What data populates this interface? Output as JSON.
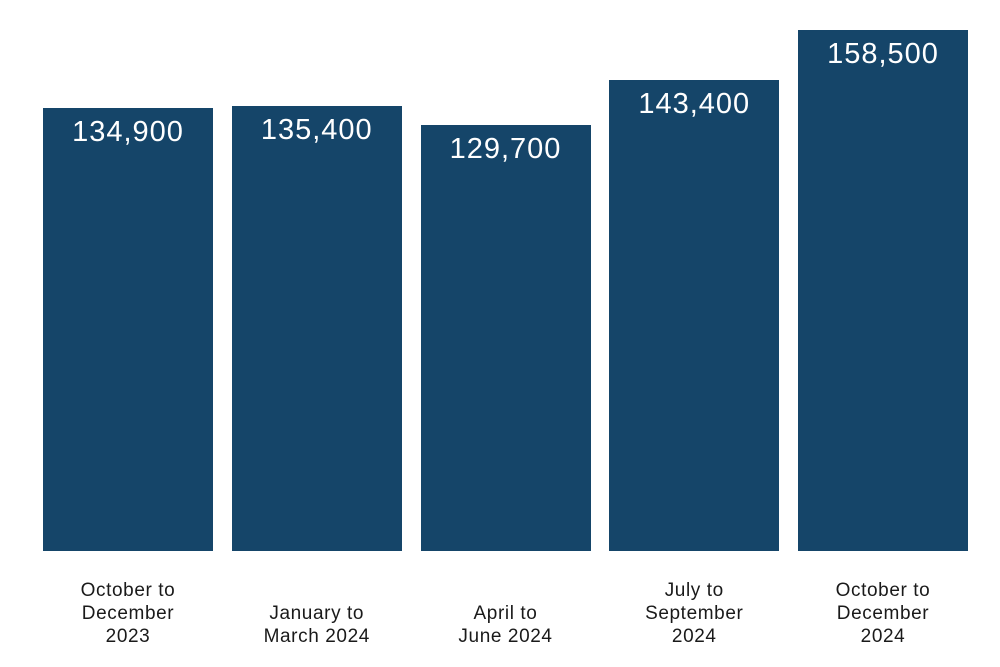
{
  "chart_data": {
    "type": "bar",
    "title": "",
    "xlabel": "",
    "ylabel": "",
    "categories": [
      "October to December 2023",
      "January to March 2024",
      "April to June 2024",
      "July to September 2024",
      "October to December 2024"
    ],
    "category_lines": [
      [
        "October to",
        "December",
        "2023"
      ],
      [
        "January to",
        "March 2024"
      ],
      [
        "April to",
        "June 2024"
      ],
      [
        "July to",
        "September",
        "2024"
      ],
      [
        "October to",
        "December",
        "2024"
      ]
    ],
    "values": [
      134900,
      135400,
      129700,
      143400,
      158500
    ],
    "value_labels": [
      "134,900",
      "135,400",
      "129,700",
      "143,400",
      "158,500"
    ],
    "ylim": [
      0,
      158500
    ],
    "grid": false,
    "legend": "none",
    "axes_visible": false,
    "value_label_position": "inside-top",
    "colors": {
      "bar_fill": "#154569",
      "value_label": "#ffffff",
      "category_label": "#1a1a1a",
      "background": "#ffffff"
    }
  }
}
